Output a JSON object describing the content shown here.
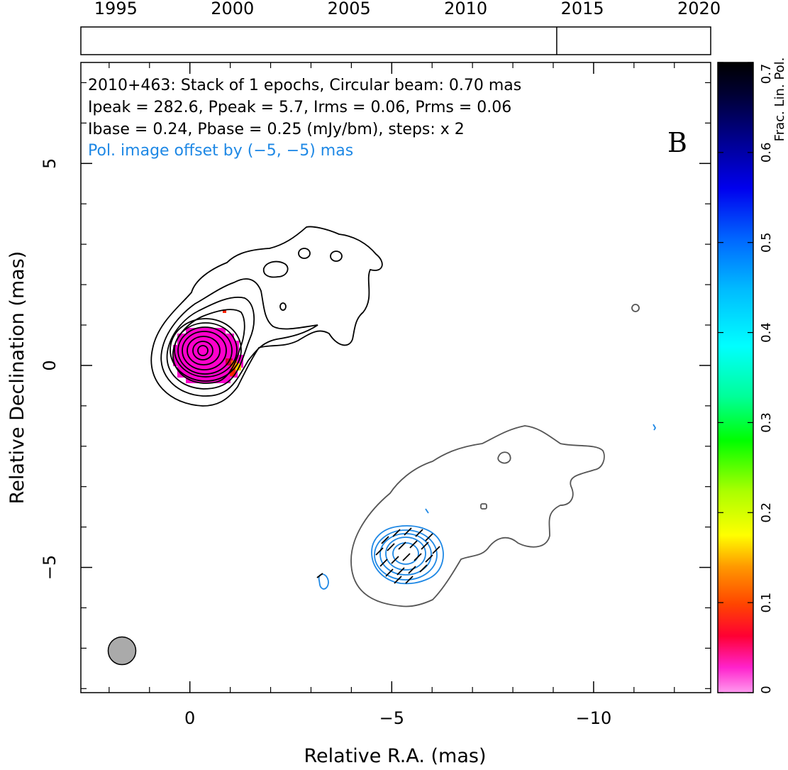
{
  "chart_data": {
    "type": "contour",
    "info_lines": [
      "2010+463: Stack of 1 epochs, Circular beam: 0.70 mas",
      "Ipeak = 282.6, Ppeak = 5.7, Irms = 0.06, Prms = 0.06",
      "Ibase = 0.24, Pbase = 0.25 (mJy/bm), steps: x 2"
    ],
    "offset_note": "Pol. image offset by (−5, −5) mas",
    "panel_label": "B",
    "xlabel": "Relative R.A. (mas)",
    "ylabel": "Relative Declination (mas)",
    "xlim": [
      2.7,
      -12.9
    ],
    "ylim": [
      -8.1,
      7.5
    ],
    "x_ticks": [
      {
        "value": 0,
        "label": "0"
      },
      {
        "value": -5,
        "label": "−5"
      },
      {
        "value": -10,
        "label": "−10"
      }
    ],
    "y_ticks": [
      {
        "value": 5,
        "label": "5"
      },
      {
        "value": 0,
        "label": "0"
      },
      {
        "value": -5,
        "label": "−5"
      }
    ],
    "timeline": {
      "range": [
        1993.5,
        2020.5
      ],
      "ticks": [
        1995,
        2000,
        2005,
        2010,
        2015,
        2020
      ],
      "epochs": [
        2013.9
      ]
    },
    "colorbar": {
      "label": "Frac. Lin. Pol.",
      "range": [
        0,
        0.7
      ],
      "ticks": [
        "0",
        "0.1",
        "0.2",
        "0.3",
        "0.4",
        "0.5",
        "0.6",
        "0.7"
      ]
    },
    "beam_mas": 0.7,
    "colors": {
      "stokes_i_contour": "#000000",
      "offset_i_contour": "#555555",
      "pol_contour": "#1e88e5",
      "beam_fill": "#aaaaaa",
      "offset_text": "#1e88e5",
      "frac_pol_core": "#ff00cc"
    }
  }
}
